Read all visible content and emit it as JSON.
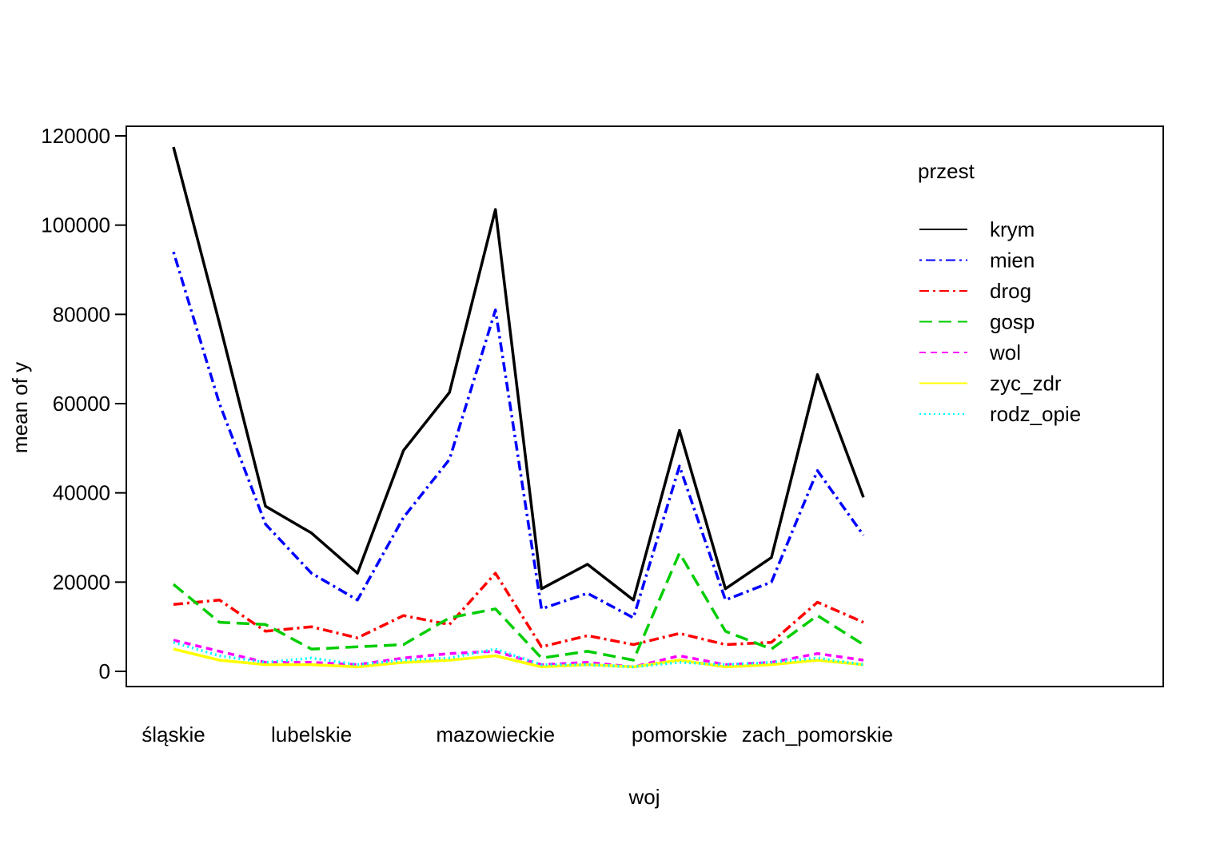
{
  "chart_data": {
    "type": "line",
    "title": "",
    "xlabel": "woj",
    "ylabel": "mean of  y",
    "ylim": [
      0,
      120000
    ],
    "y_ticks": [
      0,
      20000,
      40000,
      60000,
      80000,
      100000,
      120000
    ],
    "x_tick_labels": [
      "śląskie",
      "lubelskie",
      "mazowieckie",
      "pomorskie",
      "zach_pomorskie"
    ],
    "x_tick_positions": [
      1,
      4,
      8,
      12,
      15
    ],
    "x_count": 16,
    "legend": {
      "title": "przest",
      "placement": "top-right"
    },
    "series": [
      {
        "name": "krym",
        "color": "#000000",
        "dash": "",
        "values": [
          117500,
          78000,
          37000,
          31000,
          22000,
          49500,
          62500,
          103500,
          18500,
          24000,
          16000,
          54000,
          18500,
          25500,
          66500,
          39000
        ]
      },
      {
        "name": "mien",
        "color": "#0000ff",
        "dash": "3,5,12,5",
        "values": [
          94000,
          60000,
          33000,
          22000,
          16000,
          34500,
          47500,
          81000,
          14000,
          17500,
          12000,
          46000,
          16000,
          20000,
          45000,
          30500
        ]
      },
      {
        "name": "drog",
        "color": "#ff0000",
        "dash": "12,5,3,5",
        "values": [
          15000,
          16000,
          9000,
          10000,
          7500,
          12500,
          10500,
          22000,
          5500,
          8000,
          6000,
          8500,
          6000,
          6500,
          15500,
          11000
        ]
      },
      {
        "name": "gosp",
        "color": "#00cd00",
        "dash": "16,8",
        "values": [
          19500,
          11000,
          10500,
          5000,
          5500,
          6000,
          12000,
          14000,
          3000,
          4500,
          2500,
          26500,
          9000,
          5000,
          12500,
          6000
        ]
      },
      {
        "name": "wol",
        "color": "#ff00ff",
        "dash": "8,6",
        "values": [
          7000,
          4500,
          2000,
          2000,
          1500,
          3000,
          4000,
          4500,
          1500,
          2000,
          1000,
          3500,
          1500,
          2000,
          4000,
          2500
        ]
      },
      {
        "name": "zyc_zdr",
        "color": "#ffff00",
        "dash": "",
        "values": [
          5000,
          2500,
          1500,
          1500,
          1000,
          2000,
          2500,
          3500,
          1000,
          1500,
          1000,
          2500,
          1000,
          1500,
          2500,
          1500
        ]
      },
      {
        "name": "rodz_opie",
        "color": "#00ffff",
        "dash": "2,4",
        "values": [
          6500,
          3500,
          2000,
          3000,
          1500,
          2500,
          3000,
          5000,
          1500,
          1500,
          1000,
          2000,
          1500,
          2000,
          3000,
          1500
        ]
      }
    ]
  }
}
